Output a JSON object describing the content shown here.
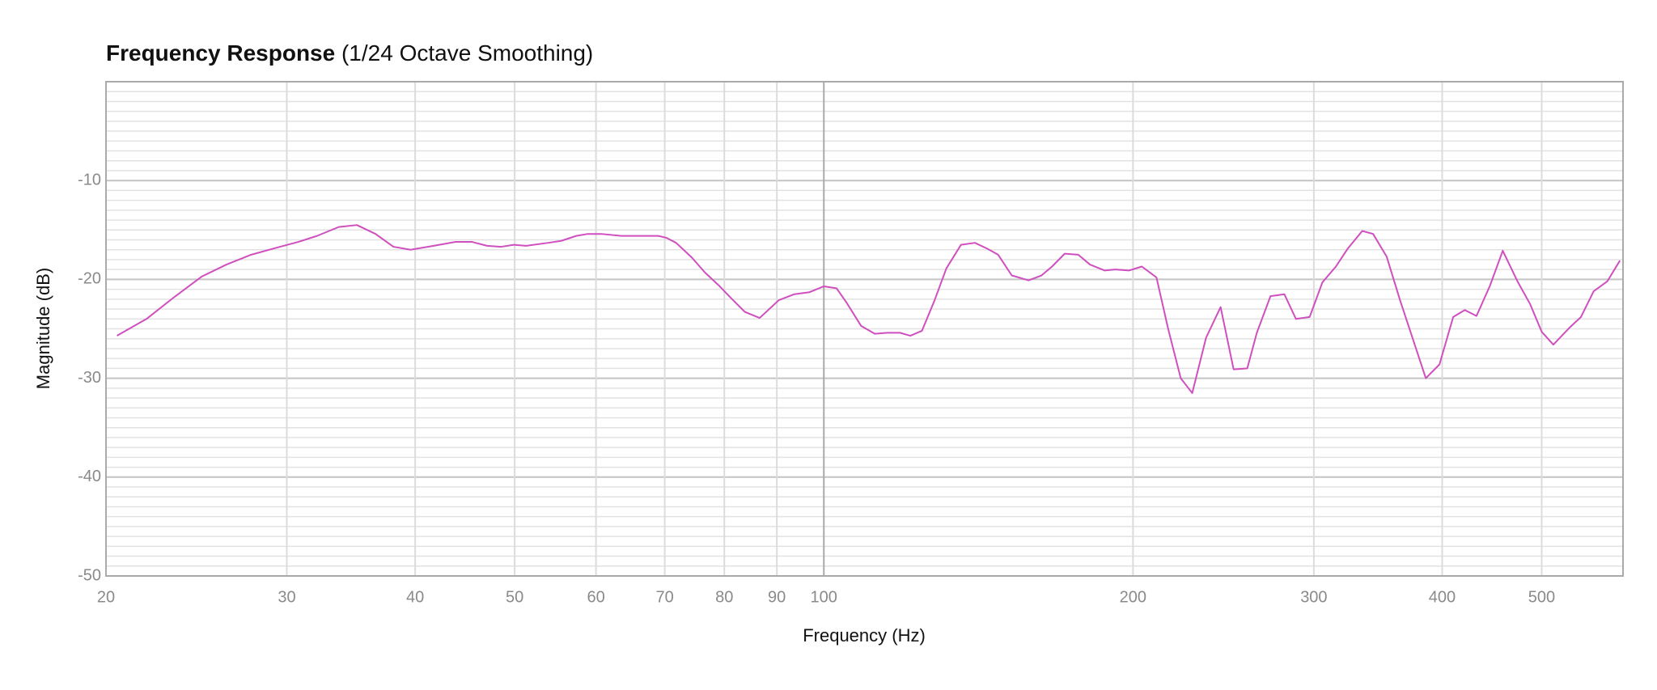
{
  "chart_data": {
    "type": "line",
    "title": "Frequency Response",
    "subtitle": "(1/24 Octave Smoothing)",
    "x_label": "Frequency (Hz)",
    "y_label": "Magnitude (dB)",
    "x_scale": "log",
    "xlim": [
      20,
      600
    ],
    "ylim": [
      -50,
      0
    ],
    "xticks": [
      20,
      30,
      40,
      50,
      60,
      70,
      80,
      90,
      100,
      200,
      300,
      400,
      500
    ],
    "yticks": [
      -50,
      -40,
      -30,
      -20,
      -10
    ],
    "yminorticks": [
      -49,
      -48,
      -47,
      -46,
      -45,
      -44,
      -43,
      -42,
      -41,
      -39,
      -38,
      -37,
      -36,
      -35,
      -34,
      -33,
      -32,
      -31,
      -29,
      -28,
      -27,
      -26,
      -25,
      -24,
      -23,
      -22,
      -21,
      -19,
      -18,
      -17,
      -16,
      -15,
      -14,
      -13,
      -12,
      -11,
      -9,
      -8,
      -7,
      -6,
      -5,
      -4,
      -3,
      -2,
      -1
    ],
    "grid": true,
    "x": [
      20.5,
      21.9,
      23.3,
      24.8,
      26.2,
      27.7,
      29.3,
      30.8,
      32.1,
      33.7,
      35.1,
      36.6,
      38.1,
      39.6,
      41.7,
      43.8,
      45.4,
      47.0,
      48.5,
      49.9,
      51.3,
      53.9,
      55.5,
      57.4,
      58.9,
      60.7,
      63.5,
      65.9,
      69.0,
      70.3,
      71.8,
      74.4,
      76.6,
      79.0,
      81.4,
      83.8,
      86.6,
      90.4,
      93.6,
      96.8,
      100,
      102.9,
      105.3,
      108.7,
      112.1,
      115.3,
      118.6,
      121.4,
      124.6,
      128.2,
      131.6,
      136.0,
      140.3,
      144.3,
      147.8,
      152.4,
      158.3,
      162.9,
      166.8,
      171.6,
      176.9,
      181.6,
      187.7,
      192.2,
      198.2,
      204.0,
      210.8,
      216.4,
      222.6,
      228.4,
      235.6,
      243.4,
      250.6,
      258.4,
      264.0,
      272.2,
      280.8,
      288.2,
      297.2,
      305.8,
      315.2,
      323.6,
      334.4,
      342.6,
      353.2,
      364.2,
      385.6,
      397.6,
      410.0,
      420.8,
      432.0,
      445.4,
      458.2,
      473.6,
      487.2,
      500.0,
      513.2,
      532.0,
      546.0,
      561.8,
      579.2,
      595.8
    ],
    "series": [
      {
        "color": "#d04fbf",
        "values": [
          -25.7,
          -24.0,
          -21.8,
          -19.7,
          -18.5,
          -17.5,
          -16.8,
          -16.2,
          -15.6,
          -14.7,
          -14.5,
          -15.4,
          -16.7,
          -17.0,
          -16.6,
          -16.2,
          -16.2,
          -16.6,
          -16.7,
          -16.5,
          -16.6,
          -16.3,
          -16.1,
          -15.6,
          -15.4,
          -15.4,
          -15.6,
          -15.6,
          -15.6,
          -15.8,
          -16.3,
          -17.8,
          -19.3,
          -20.6,
          -22.0,
          -23.3,
          -23.9,
          -22.1,
          -21.5,
          -21.3,
          -20.7,
          -20.9,
          -22.4,
          -24.7,
          -25.5,
          -25.4,
          -25.4,
          -25.7,
          -25.2,
          -22.1,
          -18.9,
          -16.5,
          -16.3,
          -16.9,
          -17.5,
          -19.6,
          -20.1,
          -19.6,
          -18.7,
          -17.4,
          -17.5,
          -18.5,
          -19.1,
          -19.0,
          -19.1,
          -18.7,
          -19.8,
          -25.0,
          -30.0,
          -31.5,
          -25.9,
          -22.8,
          -29.1,
          -29.0,
          -25.4,
          -21.7,
          -21.5,
          -24.0,
          -23.8,
          -20.3,
          -18.7,
          -16.9,
          -15.1,
          -15.4,
          -17.7,
          -22.2,
          -30.0,
          -28.6,
          -23.8,
          -23.1,
          -23.7,
          -20.6,
          -17.1,
          -20.2,
          -22.5,
          -25.3,
          -26.6,
          -24.9,
          -23.8,
          -21.2,
          -20.2,
          -18.1
        ]
      }
    ]
  }
}
